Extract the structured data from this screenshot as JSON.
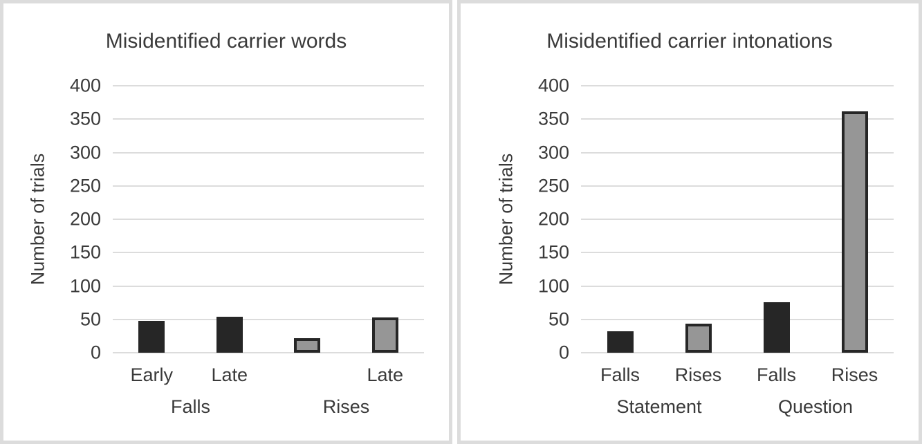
{
  "colors": {
    "text": "#3a3a3a",
    "gridline": "#dcdcdc",
    "panel_border": "#dcdcdc",
    "bar_black": "#262626",
    "bar_gray_fill": "#969696",
    "bar_gray_border": "#262626",
    "background": "#ffffff"
  },
  "chart_data": [
    {
      "type": "bar",
      "title": "Misidentified carrier words",
      "xlabel": "",
      "ylabel": "Number of trials",
      "ylim": [
        0,
        400
      ],
      "yticks": [
        400,
        350,
        300,
        250,
        200,
        150,
        100,
        50,
        0
      ],
      "grid": true,
      "legend_position": "none",
      "categories": [
        "Early",
        "Late",
        "",
        "Late"
      ],
      "group_labels": [
        "Falls",
        "Rises"
      ],
      "values": [
        48,
        54,
        22,
        53
      ],
      "bar_styles": [
        "black",
        "black",
        "gray",
        "gray"
      ]
    },
    {
      "type": "bar",
      "title": "Misidentified carrier intonations",
      "xlabel": "",
      "ylabel": "Number of trials",
      "ylim": [
        0,
        400
      ],
      "yticks": [
        400,
        350,
        300,
        250,
        200,
        150,
        100,
        50,
        0
      ],
      "grid": true,
      "legend_position": "none",
      "categories": [
        "Falls",
        "Rises",
        "Falls",
        "Rises"
      ],
      "group_labels": [
        "Statement",
        "Question"
      ],
      "values": [
        32,
        44,
        76,
        362
      ],
      "bar_styles": [
        "black",
        "gray",
        "black",
        "gray"
      ]
    }
  ]
}
